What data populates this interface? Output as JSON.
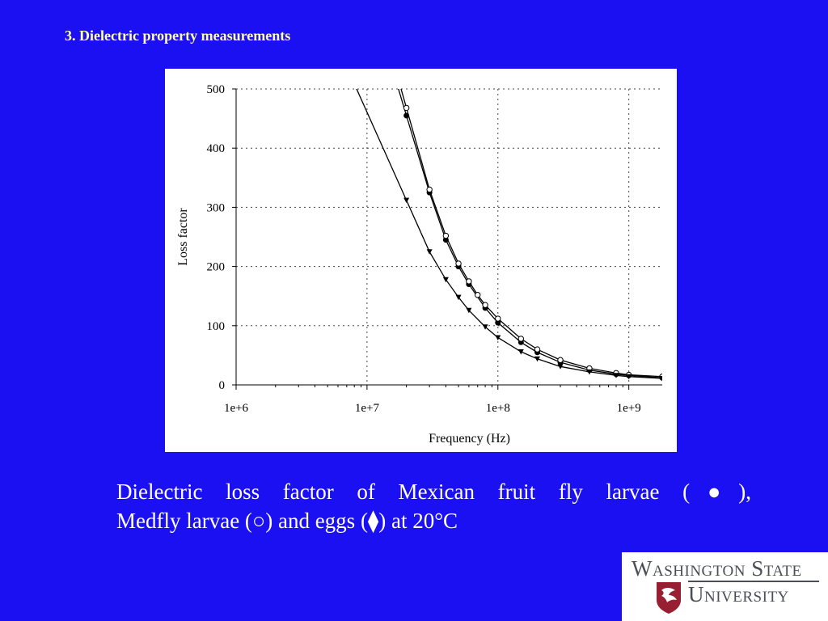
{
  "slide": {
    "title": "3. Dielectric property measurements",
    "caption_line1": "Dielectric loss factor of Mexican fruit fly larvae (●),",
    "caption_line2": "Medfly larvae (○) and eggs (⧫) at 20°C"
  },
  "logo": {
    "line1": "Washington State",
    "line2": "University",
    "icon": "cougar-head-icon",
    "brand_color": "#981e32"
  },
  "colors": {
    "background": "#1a10f2",
    "title": "#ffff99",
    "caption": "#ffffff"
  },
  "chart_data": {
    "type": "scatter",
    "xscale": "log",
    "xlabel": "Frequency (Hz)",
    "ylabel": "Loss factor",
    "xlim": [
      1000000,
      1800000000
    ],
    "ylim": [
      0,
      500
    ],
    "x_tick_values": [
      1000000,
      10000000,
      100000000,
      1000000000
    ],
    "x_tick_labels": [
      "1e+6",
      "1e+7",
      "1e+8",
      "1e+9"
    ],
    "y_ticks": [
      0,
      100,
      200,
      300,
      400,
      500
    ],
    "grid": true,
    "series": [
      {
        "marker": "filled-circle",
        "x": [
          20000000,
          30000000,
          40000000,
          50000000,
          60000000,
          80000000,
          100000000,
          150000000,
          200000000,
          300000000,
          500000000,
          800000000,
          1000000000,
          1800000000
        ],
        "y": [
          455,
          325,
          245,
          200,
          170,
          130,
          105,
          72,
          55,
          38,
          25,
          18,
          16,
          12
        ]
      },
      {
        "marker": "open-circle",
        "x": [
          20000000,
          30000000,
          40000000,
          50000000,
          60000000,
          70000000,
          80000000,
          100000000,
          150000000,
          200000000,
          300000000,
          500000000,
          800000000,
          1000000000,
          1800000000
        ],
        "y": [
          468,
          330,
          252,
          205,
          175,
          152,
          135,
          112,
          78,
          60,
          42,
          28,
          20,
          17,
          14
        ]
      },
      {
        "marker": "filled-triangle",
        "x": [
          20000000,
          30000000,
          40000000,
          50000000,
          60000000,
          80000000,
          100000000,
          150000000,
          200000000,
          300000000,
          500000000,
          800000000,
          1000000000,
          1800000000
        ],
        "y": [
          312,
          225,
          178,
          148,
          126,
          98,
          80,
          56,
          44,
          31,
          22,
          16,
          14,
          11
        ]
      }
    ]
  }
}
